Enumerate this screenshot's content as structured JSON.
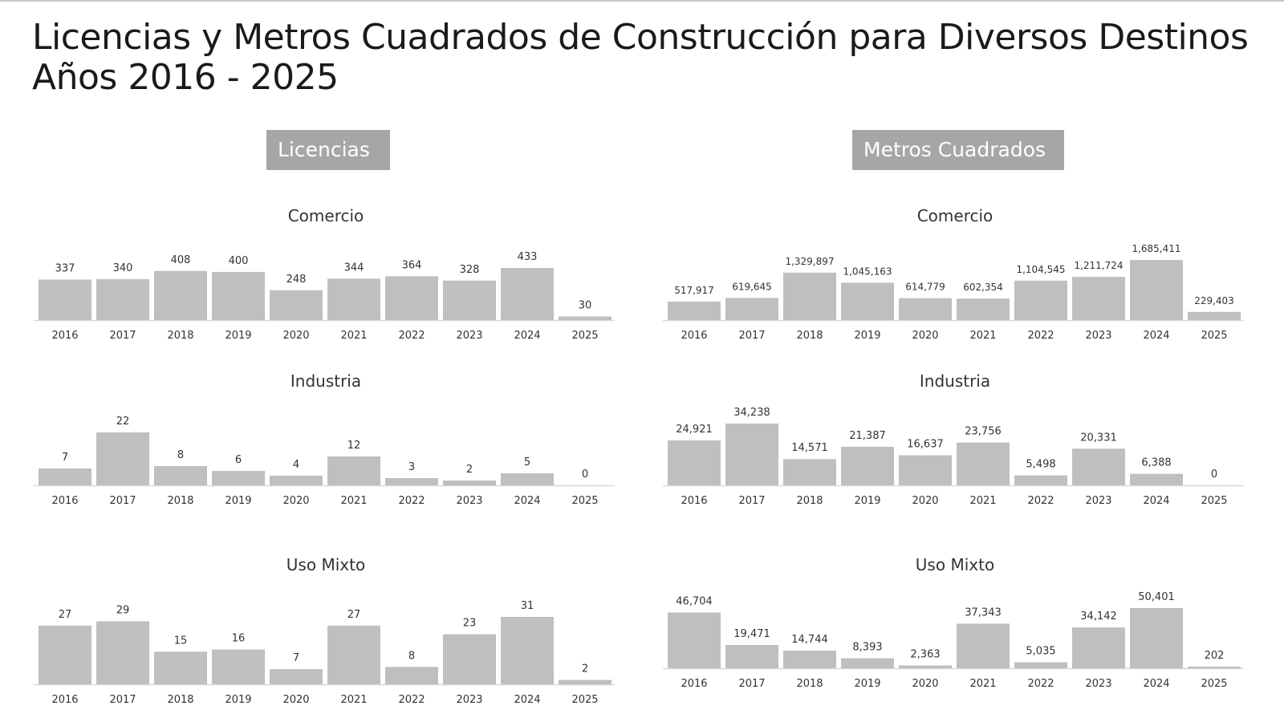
{
  "title": {
    "line1": "Licencias y Metros Cuadrados de Construcción para Diversos Destinos",
    "line2": "Años 2016 - 2025"
  },
  "sections": {
    "licencias": "Licencias",
    "metros": "Metros Cuadrados"
  },
  "colors": {
    "bar": "#bfbfbf",
    "axis": "#d9d9d9",
    "header_bg": "#a6a6a6"
  },
  "chart_data": [
    {
      "type": "bar",
      "title": "Comercio",
      "section": "Licencias",
      "categories": [
        "2016",
        "2017",
        "2018",
        "2019",
        "2020",
        "2021",
        "2022",
        "2023",
        "2024",
        "2025"
      ],
      "values": [
        337,
        340,
        408,
        400,
        248,
        344,
        364,
        328,
        433,
        30
      ],
      "labels": [
        "337",
        "340",
        "408",
        "400",
        "248",
        "344",
        "364",
        "328",
        "433",
        "30"
      ]
    },
    {
      "type": "bar",
      "title": "Industria",
      "section": "Licencias",
      "categories": [
        "2016",
        "2017",
        "2018",
        "2019",
        "2020",
        "2021",
        "2022",
        "2023",
        "2024",
        "2025"
      ],
      "values": [
        7,
        22,
        8,
        6,
        4,
        12,
        3,
        2,
        5,
        0
      ],
      "labels": [
        "7",
        "22",
        "8",
        "6",
        "4",
        "12",
        "3",
        "2",
        "5",
        "0"
      ]
    },
    {
      "type": "bar",
      "title": "Uso Mixto",
      "section": "Licencias",
      "categories": [
        "2016",
        "2017",
        "2018",
        "2019",
        "2020",
        "2021",
        "2022",
        "2023",
        "2024",
        "2025"
      ],
      "values": [
        27,
        29,
        15,
        16,
        7,
        27,
        8,
        23,
        31,
        2
      ],
      "labels": [
        "27",
        "29",
        "15",
        "16",
        "7",
        "27",
        "8",
        "23",
        "31",
        "2"
      ]
    },
    {
      "type": "bar",
      "title": "Comercio",
      "section": "Metros Cuadrados",
      "categories": [
        "2016",
        "2017",
        "2018",
        "2019",
        "2020",
        "2021",
        "2022",
        "2023",
        "2024",
        "2025"
      ],
      "values": [
        517917,
        619645,
        1329897,
        1045163,
        614779,
        602354,
        1104545,
        1211724,
        1685411,
        229403
      ],
      "labels": [
        "517,917",
        "619,645",
        "1,329,897",
        "1,045,163",
        "614,779",
        "602,354",
        "1,104,545",
        "1,211,724",
        "1,685,411",
        "229,403"
      ]
    },
    {
      "type": "bar",
      "title": "Industria",
      "section": "Metros Cuadrados",
      "categories": [
        "2016",
        "2017",
        "2018",
        "2019",
        "2020",
        "2021",
        "2022",
        "2023",
        "2024",
        "2025"
      ],
      "values": [
        24921,
        34238,
        14571,
        21387,
        16637,
        23756,
        5498,
        20331,
        6388,
        0
      ],
      "labels": [
        "24,921",
        "34,238",
        "14,571",
        "21,387",
        "16,637",
        "23,756",
        "5,498",
        "20,331",
        "6,388",
        "0"
      ]
    },
    {
      "type": "bar",
      "title": "Uso Mixto",
      "section": "Metros Cuadrados",
      "categories": [
        "2016",
        "2017",
        "2018",
        "2019",
        "2020",
        "2021",
        "2022",
        "2023",
        "2024",
        "2025"
      ],
      "values": [
        46704,
        19471,
        14744,
        8393,
        2363,
        37343,
        5035,
        34142,
        50401,
        202
      ],
      "labels": [
        "46,704",
        "19,471",
        "14,744",
        "8,393",
        "2,363",
        "37,343",
        "5,035",
        "34,142",
        "50,401",
        "202"
      ]
    }
  ]
}
